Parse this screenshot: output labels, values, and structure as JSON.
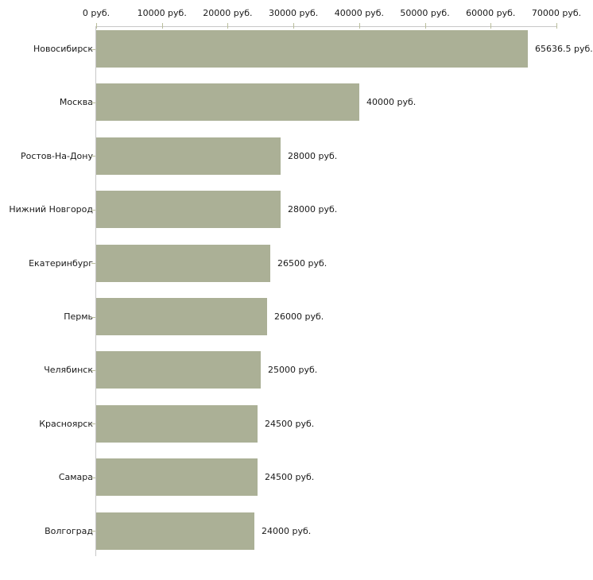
{
  "chart_data": {
    "type": "bar",
    "orientation": "horizontal",
    "title": "",
    "xlabel": "",
    "ylabel": "",
    "grid": false,
    "legend": false,
    "xlim": [
      0,
      70000
    ],
    "x_ticks": [
      0,
      10000,
      20000,
      30000,
      40000,
      50000,
      60000,
      70000
    ],
    "x_tick_labels": [
      "0 руб.",
      "10000 руб.",
      "20000 руб.",
      "30000 руб.",
      "40000 руб.",
      "50000 руб.",
      "60000 руб.",
      "70000 руб."
    ],
    "categories": [
      "Новосибирск",
      "Москва",
      "Ростов-На-Дону",
      "Нижний Новгород",
      "Екатеринбург",
      "Пермь",
      "Челябинск",
      "Красноярск",
      "Самара",
      "Волгоград"
    ],
    "values": [
      65636.5,
      40000,
      28000,
      28000,
      26500,
      26000,
      25000,
      24500,
      24500,
      24000
    ],
    "value_labels": [
      "65636.5 руб.",
      "40000 руб.",
      "28000 руб.",
      "28000 руб.",
      "26500 руб.",
      "26000 руб.",
      "25000 руб.",
      "24500 руб.",
      "24500 руб.",
      "24000 руб."
    ]
  },
  "colors": {
    "background": "#ffffff",
    "bar_fill": "#abb096",
    "axis_line": "#c8c8c8",
    "tick_mark": "#b9bd9b",
    "text": "#1a1a1a"
  }
}
